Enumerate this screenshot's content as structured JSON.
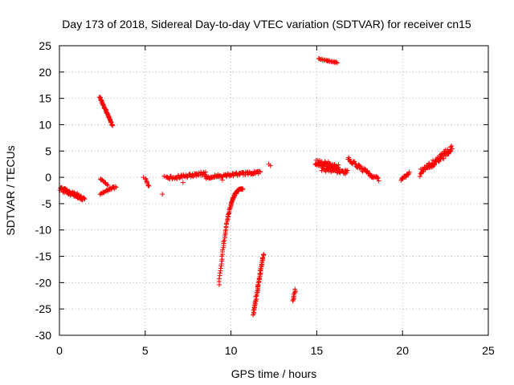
{
  "chart_data": {
    "type": "scatter",
    "title": "Day 173 of 2018, Sidereal Day-to-day VTEC variation (SDTVAR) for receiver cn15",
    "xlabel": "GPS time / hours",
    "ylabel": "SDTVAR / TECUs",
    "xlim": [
      0,
      25
    ],
    "ylim": [
      -30,
      25
    ],
    "xticks": [
      0,
      5,
      10,
      15,
      20,
      25
    ],
    "yticks": [
      -30,
      -25,
      -20,
      -15,
      -10,
      -5,
      0,
      5,
      10,
      15,
      20,
      25
    ],
    "grid": true,
    "marker": "+",
    "colors": {
      "series": "#ff0000",
      "grid": "#b0b0b0",
      "axis": "#000000"
    },
    "segments": [
      {
        "name": "a1",
        "x0": 0.05,
        "x1": 1.45,
        "y0": -2.2,
        "y1": -4.0,
        "spread": 0.9,
        "n": 70
      },
      {
        "name": "a2",
        "x0": 2.35,
        "x1": 3.1,
        "y0": 15.3,
        "y1": 9.8,
        "spread": 0.3,
        "n": 45
      },
      {
        "name": "a3",
        "x0": 2.4,
        "x1": 2.8,
        "y0": -0.3,
        "y1": -1.5,
        "spread": 0.3,
        "n": 10
      },
      {
        "name": "a4",
        "x0": 2.4,
        "x1": 3.3,
        "y0": -3.0,
        "y1": -1.8,
        "spread": 0.5,
        "n": 22
      },
      {
        "name": "a5",
        "x0": 5.0,
        "x1": 5.2,
        "y0": -0.3,
        "y1": -1.8,
        "spread": 0.3,
        "n": 8
      },
      {
        "name": "a6",
        "x0": 6.2,
        "x1": 8.5,
        "y0": -0.3,
        "y1": 0.8,
        "spread": 0.7,
        "n": 60
      },
      {
        "name": "a7",
        "x0": 8.5,
        "x1": 11.7,
        "y0": 0.0,
        "y1": 1.0,
        "spread": 0.6,
        "n": 90
      },
      {
        "name": "a8",
        "x0": 9.3,
        "x1": 10.7,
        "y0": -20.3,
        "y1": -2.2,
        "curve": "log",
        "spread": 0.2,
        "n": 90
      },
      {
        "name": "a9",
        "x0": 11.3,
        "x1": 11.9,
        "y0": -26.0,
        "y1": -14.5,
        "spread": 0.3,
        "n": 55
      },
      {
        "name": "a10",
        "x0": 13.6,
        "x1": 13.75,
        "y0": -23.5,
        "y1": -21.3,
        "spread": 0.2,
        "n": 10
      },
      {
        "name": "a11",
        "x0": 15.1,
        "x1": 16.2,
        "y0": 22.5,
        "y1": 21.8,
        "spread": 0.2,
        "n": 22
      },
      {
        "name": "a12",
        "x0": 14.9,
        "x1": 16.3,
        "y0": 2.8,
        "y1": 2.0,
        "spread": 1.2,
        "n": 60
      },
      {
        "name": "a13",
        "x0": 15.3,
        "x1": 16.8,
        "y0": 1.5,
        "y1": 1.0,
        "spread": 0.8,
        "n": 40
      },
      {
        "name": "a14",
        "x0": 16.8,
        "x1": 18.6,
        "y0": 3.5,
        "y1": -0.5,
        "spread": 0.8,
        "n": 55
      },
      {
        "name": "a15",
        "x0": 19.9,
        "x1": 20.4,
        "y0": -0.5,
        "y1": 0.8,
        "spread": 0.5,
        "n": 16
      },
      {
        "name": "a16",
        "x0": 21.0,
        "x1": 22.9,
        "y0": 0.8,
        "y1": 5.5,
        "spread": 1.3,
        "n": 80
      }
    ],
    "points": [
      {
        "x": 2.4,
        "y": -0.3
      },
      {
        "x": 6.1,
        "y": 0.2
      },
      {
        "x": 6.0,
        "y": -3.2
      },
      {
        "x": 7.2,
        "y": -1.0
      },
      {
        "x": 12.3,
        "y": 2.2
      },
      {
        "x": 12.2,
        "y": 2.5
      },
      {
        "x": 9.5,
        "y": -0.5
      },
      {
        "x": 4.9,
        "y": 0.0
      }
    ]
  }
}
